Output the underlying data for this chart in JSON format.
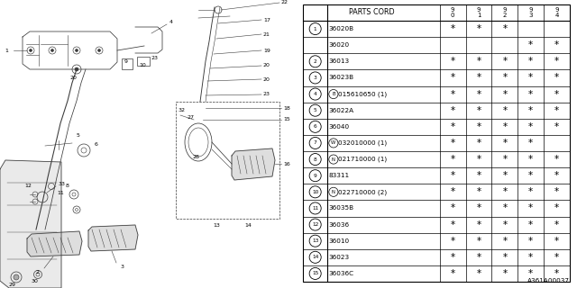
{
  "diagram_code": "A361A00037",
  "col_header": "PARTS CORD",
  "year_cols": [
    "9\n0",
    "9\n1",
    "9\n2",
    "9\n3",
    "9\n4"
  ],
  "rows": [
    {
      "num": "1",
      "circle": true,
      "prefix": "",
      "part": "36020B",
      "stars": [
        1,
        1,
        1,
        0,
        0
      ]
    },
    {
      "num": "",
      "circle": false,
      "prefix": "",
      "part": "36020",
      "stars": [
        0,
        0,
        0,
        1,
        1
      ]
    },
    {
      "num": "2",
      "circle": true,
      "prefix": "",
      "part": "36013",
      "stars": [
        1,
        1,
        1,
        1,
        1
      ]
    },
    {
      "num": "3",
      "circle": true,
      "prefix": "",
      "part": "36023B",
      "stars": [
        1,
        1,
        1,
        1,
        1
      ]
    },
    {
      "num": "4",
      "circle": true,
      "prefix": "B",
      "part": "015610650 (1)",
      "stars": [
        1,
        1,
        1,
        1,
        1
      ]
    },
    {
      "num": "5",
      "circle": true,
      "prefix": "",
      "part": "36022A",
      "stars": [
        1,
        1,
        1,
        1,
        1
      ]
    },
    {
      "num": "6",
      "circle": true,
      "prefix": "",
      "part": "36040",
      "stars": [
        1,
        1,
        1,
        1,
        1
      ]
    },
    {
      "num": "7",
      "circle": true,
      "prefix": "W",
      "part": "032010000 (1)",
      "stars": [
        1,
        1,
        1,
        1,
        0
      ]
    },
    {
      "num": "8",
      "circle": true,
      "prefix": "N",
      "part": "021710000 (1)",
      "stars": [
        1,
        1,
        1,
        1,
        1
      ]
    },
    {
      "num": "9",
      "circle": true,
      "prefix": "",
      "part": "83311",
      "stars": [
        1,
        1,
        1,
        1,
        1
      ]
    },
    {
      "num": "10",
      "circle": true,
      "prefix": "N",
      "part": "022710000 (2)",
      "stars": [
        1,
        1,
        1,
        1,
        1
      ]
    },
    {
      "num": "11",
      "circle": true,
      "prefix": "",
      "part": "36035B",
      "stars": [
        1,
        1,
        1,
        1,
        1
      ]
    },
    {
      "num": "12",
      "circle": true,
      "prefix": "",
      "part": "36036",
      "stars": [
        1,
        1,
        1,
        1,
        1
      ]
    },
    {
      "num": "13",
      "circle": true,
      "prefix": "",
      "part": "36010",
      "stars": [
        1,
        1,
        1,
        1,
        1
      ]
    },
    {
      "num": "14",
      "circle": true,
      "prefix": "",
      "part": "36023",
      "stars": [
        1,
        1,
        1,
        1,
        1
      ]
    },
    {
      "num": "15",
      "circle": true,
      "prefix": "",
      "part": "36036C",
      "stars": [
        1,
        1,
        1,
        1,
        1
      ]
    }
  ],
  "bg_color": "#ffffff",
  "line_color": "#000000",
  "draw_color": "#444444",
  "font_size": 5.2,
  "header_font_size": 5.8,
  "label_font_size": 4.5
}
